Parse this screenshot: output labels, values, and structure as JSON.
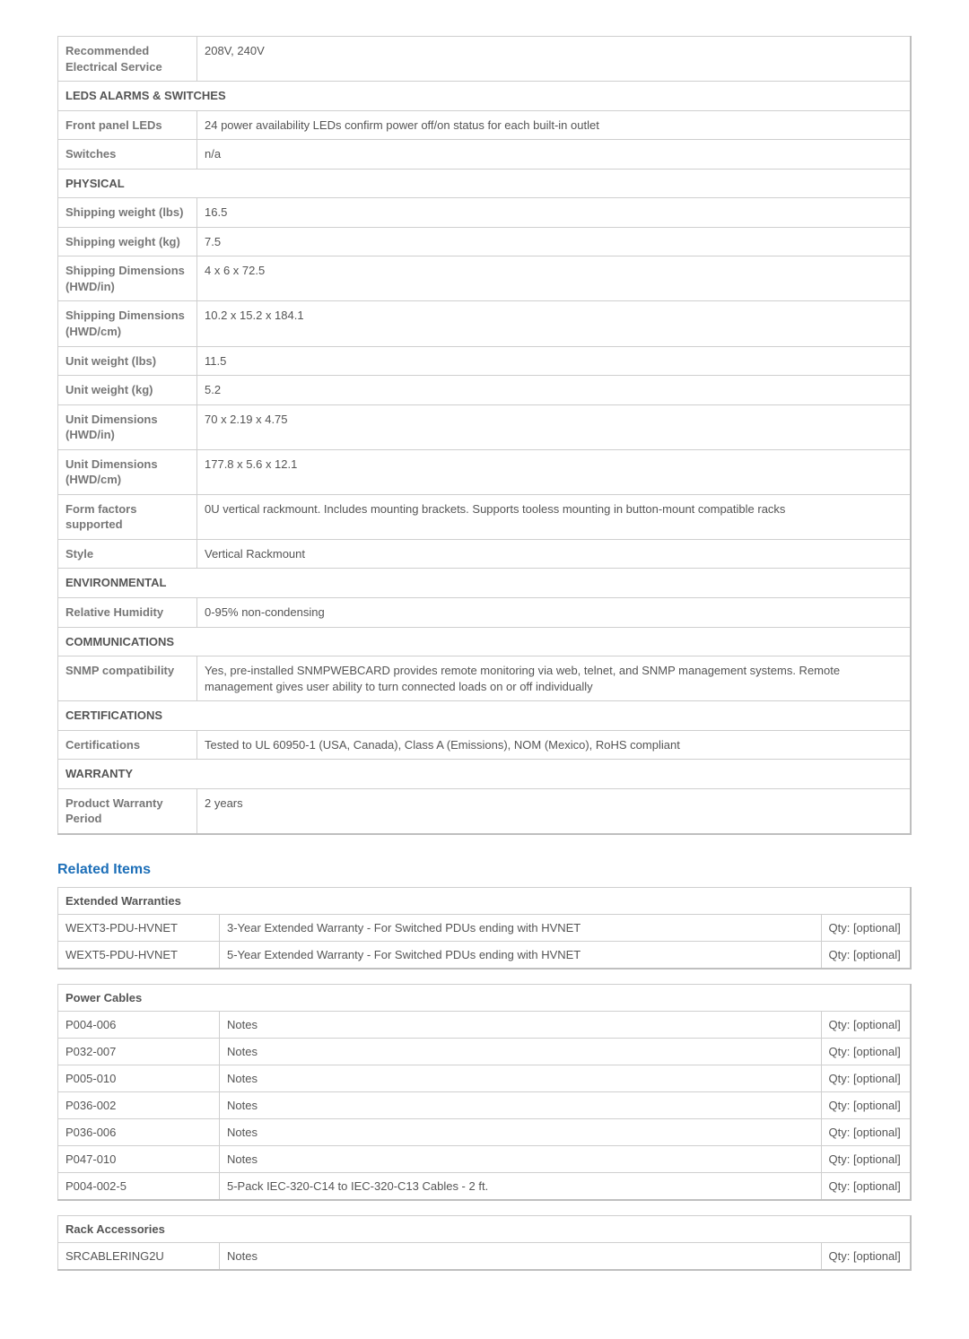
{
  "specs": {
    "rows": [
      {
        "label": "Recommended Electrical Service",
        "value": "208V, 240V"
      }
    ],
    "sections": [
      {
        "title": "LEDS ALARMS & SWITCHES",
        "rows": [
          {
            "label": "Front panel LEDs",
            "value": "24 power availability LEDs confirm power off/on status for each built-in outlet"
          },
          {
            "label": "Switches",
            "value": "n/a"
          }
        ]
      },
      {
        "title": "PHYSICAL",
        "rows": [
          {
            "label": "Shipping weight (lbs)",
            "value": "16.5"
          },
          {
            "label": "Shipping weight (kg)",
            "value": "7.5"
          },
          {
            "label": "Shipping Dimensions (HWD/in)",
            "value": "4 x 6 x 72.5"
          },
          {
            "label": "Shipping Dimensions (HWD/cm)",
            "value": "10.2 x 15.2 x 184.1"
          },
          {
            "label": "Unit weight (lbs)",
            "value": "11.5"
          },
          {
            "label": "Unit weight (kg)",
            "value": "5.2"
          },
          {
            "label": "Unit Dimensions (HWD/in)",
            "value": "70 x 2.19 x 4.75"
          },
          {
            "label": "Unit Dimensions (HWD/cm)",
            "value": "177.8 x 5.6 x 12.1"
          },
          {
            "label": "Form factors supported",
            "value": "0U vertical rackmount. Includes mounting brackets. Supports tooless mounting in button-mount compatible racks"
          },
          {
            "label": "Style",
            "value": "Vertical Rackmount"
          }
        ]
      },
      {
        "title": "ENVIRONMENTAL",
        "rows": [
          {
            "label": "Relative Humidity",
            "value": "0-95% non-condensing"
          }
        ]
      },
      {
        "title": "COMMUNICATIONS",
        "rows": [
          {
            "label": "SNMP compatibility",
            "value": "Yes, pre-installed SNMPWEBCARD provides remote monitoring via web, telnet, and SNMP management systems. Remote management gives user ability to turn connected loads on or off individually"
          }
        ]
      },
      {
        "title": "CERTIFICATIONS",
        "rows": [
          {
            "label": "Certifications",
            "value": "Tested to UL 60950-1 (USA, Canada), Class A (Emissions), NOM (Mexico), RoHS compliant"
          }
        ]
      },
      {
        "title": "WARRANTY",
        "rows": [
          {
            "label": "Product Warranty Period",
            "value": "2 years"
          }
        ]
      }
    ]
  },
  "related": {
    "heading": "Related Items",
    "groups": [
      {
        "title": "Extended Warranties",
        "rows": [
          {
            "sku": "WEXT3-PDU-HVNET",
            "desc": "3-Year Extended Warranty - For Switched PDUs ending with HVNET",
            "qty": "Qty: [optional]"
          },
          {
            "sku": "WEXT5-PDU-HVNET",
            "desc": "5-Year Extended Warranty - For Switched PDUs ending with HVNET",
            "qty": "Qty: [optional]"
          }
        ]
      },
      {
        "title": "Power Cables",
        "rows": [
          {
            "sku": "P004-006",
            "desc": "Notes",
            "qty": "Qty: [optional]"
          },
          {
            "sku": "P032-007",
            "desc": "Notes",
            "qty": "Qty: [optional]"
          },
          {
            "sku": "P005-010",
            "desc": "Notes",
            "qty": "Qty: [optional]"
          },
          {
            "sku": "P036-002",
            "desc": "Notes",
            "qty": "Qty: [optional]"
          },
          {
            "sku": "P036-006",
            "desc": "Notes",
            "qty": "Qty: [optional]"
          },
          {
            "sku": "P047-010",
            "desc": "Notes",
            "qty": "Qty: [optional]"
          },
          {
            "sku": "P004-002-5",
            "desc": "5-Pack IEC-320-C14 to IEC-320-C13 Cables - 2 ft.",
            "qty": "Qty: [optional]"
          }
        ]
      },
      {
        "title": "Rack Accessories",
        "rows": [
          {
            "sku": "SRCABLERING2U",
            "desc": "Notes",
            "qty": "Qty: [optional]"
          }
        ]
      }
    ]
  },
  "style": {
    "heading_color": "#1d6fb8",
    "border_color": "#cfcfcf",
    "label_color": "#777777",
    "text_color": "#555555",
    "background": "#ffffff",
    "font_family": "Arial",
    "base_font_size": 13
  }
}
